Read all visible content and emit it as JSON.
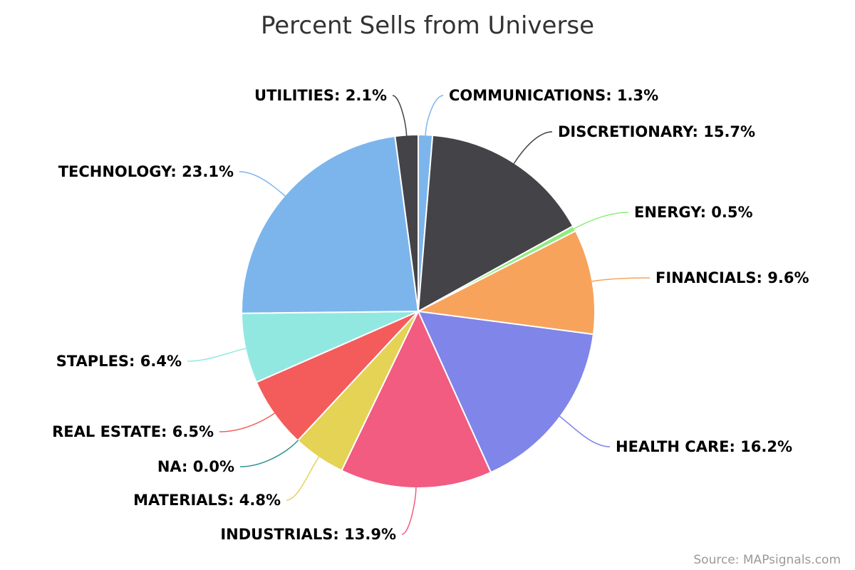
{
  "chart_data": {
    "type": "pie",
    "title": "Percent Sells from Universe",
    "series": [
      {
        "label": "COMMUNICATIONS",
        "value": 1.3,
        "color": "#7cb5ec",
        "display": "COMMUNICATIONS: 1.3%"
      },
      {
        "label": "DISCRETIONARY",
        "value": 15.7,
        "color": "#434348",
        "display": "DISCRETIONARY: 15.7%"
      },
      {
        "label": "ENERGY",
        "value": 0.5,
        "color": "#90ed7d",
        "display": "ENERGY: 0.5%"
      },
      {
        "label": "FINANCIALS",
        "value": 9.6,
        "color": "#f7a35c",
        "display": "FINANCIALS: 9.6%"
      },
      {
        "label": "HEALTH CARE",
        "value": 16.2,
        "color": "#8085e9",
        "display": "HEALTH CARE: 16.2%"
      },
      {
        "label": "INDUSTRIALS",
        "value": 13.9,
        "color": "#f15c80",
        "display": "INDUSTRIALS: 13.9%"
      },
      {
        "label": "MATERIALS",
        "value": 4.8,
        "color": "#e4d354",
        "display": "MATERIALS: 4.8%"
      },
      {
        "label": "NA",
        "value": 0.0,
        "color": "#2b908f",
        "display": "NA: 0.0%"
      },
      {
        "label": "REAL ESTATE",
        "value": 6.5,
        "color": "#f45b5b",
        "display": "REAL ESTATE: 6.5%"
      },
      {
        "label": "STAPLES",
        "value": 6.4,
        "color": "#91e8e1",
        "display": "STAPLES: 6.4%"
      },
      {
        "label": "TECHNOLOGY",
        "value": 23.1,
        "color": "#7cb5ec",
        "display": "TECHNOLOGY: 23.1%"
      },
      {
        "label": "UTILITIES",
        "value": 2.1,
        "color": "#434348",
        "display": "UTILITIES: 2.1%"
      }
    ]
  },
  "credit": "Source: MAPsignals.com"
}
